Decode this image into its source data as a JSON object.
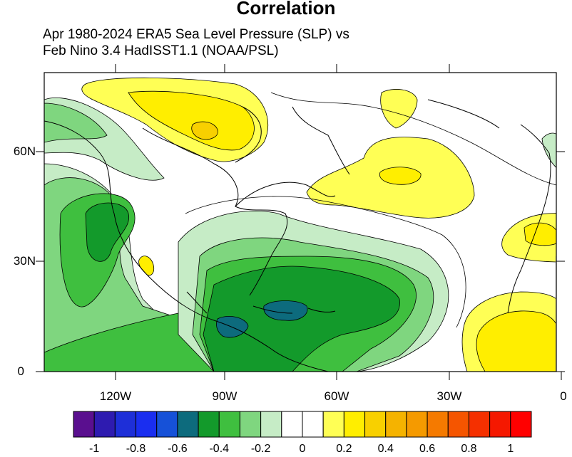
{
  "title": "Correlation",
  "subtitle_line1": "Apr 1980-2024 ERA5 Sea Level Pressure (SLP) vs",
  "subtitle_line2": "Feb Nino 3.4 HadISST1.1 (NOAA/PSL)",
  "lat_labels": [
    "60N",
    "30N",
    "0"
  ],
  "lon_labels": [
    "120W",
    "90W",
    "60W",
    "30W",
    "0"
  ],
  "colorbar": {
    "labels": [
      "-1",
      "-0.8",
      "-0.6",
      "-0.4",
      "-0.2",
      "0",
      "0.2",
      "0.4",
      "0.6",
      "0.8",
      "1"
    ],
    "colors": [
      "#5a0f8f",
      "#2e1bb0",
      "#1e2fd8",
      "#1a2ef0",
      "#1651d8",
      "#0d6b7d",
      "#139a2b",
      "#3fbf3f",
      "#7fd67f",
      "#c6ecc6",
      "#ffffff",
      "#ffffff",
      "#ffff55",
      "#ffee00",
      "#f8d000",
      "#f5b300",
      "#f59a00",
      "#f57a00",
      "#f55500",
      "#f53000",
      "#f51800",
      "#ff0000"
    ]
  },
  "colors": {
    "green_light": "#c6ecc6",
    "green_mid": "#7fd67f",
    "green": "#3fbf3f",
    "green_dark": "#139a2b",
    "teal": "#0d6b7d",
    "yellow_light": "#ffff55",
    "yellow": "#ffee00",
    "orange": "#f8d000"
  }
}
